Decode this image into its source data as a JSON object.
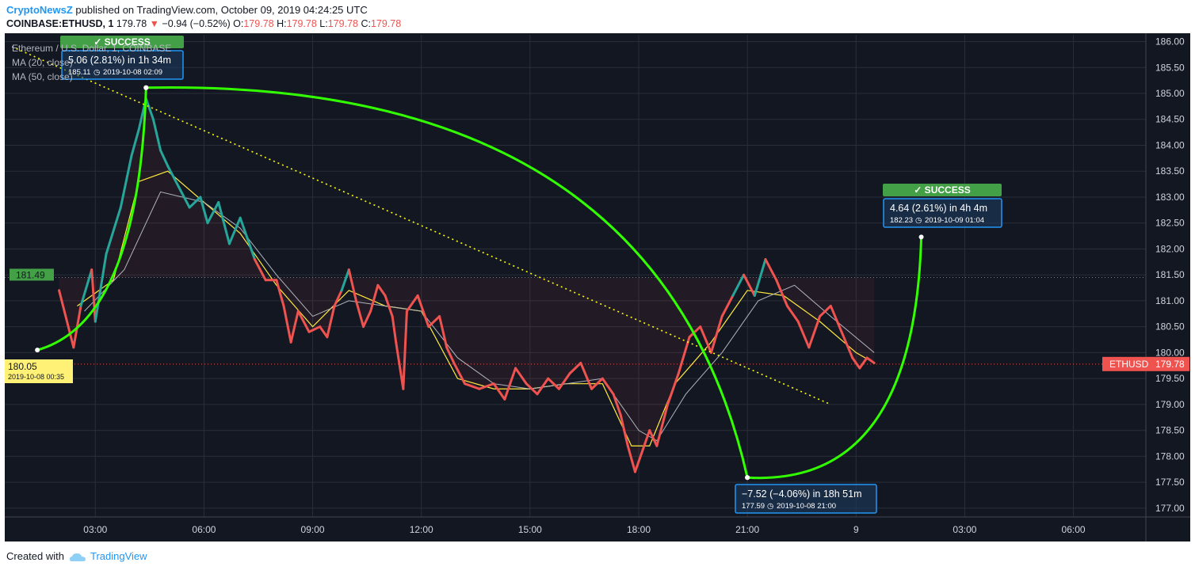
{
  "header": {
    "publisher": "CryptoNewsZ",
    "published_text": "published on TradingView.com, October 09, 2019 04:24:25 UTC",
    "symbol": "COINBASE:ETHUSD, 1",
    "last": "179.78",
    "change": "−0.94 (−0.52%)",
    "open_label": "O:",
    "open": "179.78",
    "high_label": "H:",
    "high": "179.78",
    "low_label": "L:",
    "low": "179.78",
    "close_label": "C:",
    "close": "179.78"
  },
  "legend": {
    "title": "Ethereum / U.S. Dollar, 1, COINBASE",
    "ma20": "MA (20, close)",
    "ma50": "MA (50, close)"
  },
  "footer": {
    "created_with": "Created with",
    "brand": "TradingView"
  },
  "colors": {
    "background": "#131722",
    "grid": "#2a2e39",
    "price_up": "#26a69a",
    "price_down": "#ef5350",
    "ma20": "#ffeb3b",
    "ma50": "#b2b5be",
    "projection_arc": "#32ff00",
    "trend_line": "#ffff00",
    "success": "#43a047",
    "callout_border": "#2196f3",
    "start_label": "#fff176"
  },
  "chart_data": {
    "type": "line",
    "title": "Ethereum / U.S. Dollar, 1, COINBASE",
    "series": [
      {
        "name": "ETHUSD",
        "values": [
          [
            -1.0,
            181.2
          ],
          [
            -0.6,
            180.1
          ],
          [
            -0.4,
            180.9
          ],
          [
            -0.1,
            181.6
          ],
          [
            0.0,
            180.6
          ],
          [
            0.3,
            181.9
          ],
          [
            0.7,
            182.8
          ],
          [
            1.0,
            183.8
          ],
          [
            1.2,
            184.3
          ],
          [
            1.4,
            184.9
          ],
          [
            1.6,
            184.5
          ],
          [
            1.8,
            183.9
          ],
          [
            2.0,
            183.6
          ],
          [
            2.3,
            183.2
          ],
          [
            2.6,
            182.8
          ],
          [
            2.9,
            183.0
          ],
          [
            3.1,
            182.5
          ],
          [
            3.4,
            182.9
          ],
          [
            3.7,
            182.1
          ],
          [
            4.0,
            182.6
          ],
          [
            4.2,
            182.2
          ],
          [
            4.4,
            181.8
          ],
          [
            4.7,
            181.4
          ],
          [
            5.0,
            181.4
          ],
          [
            5.2,
            180.9
          ],
          [
            5.4,
            180.2
          ],
          [
            5.6,
            180.8
          ],
          [
            5.9,
            180.4
          ],
          [
            6.2,
            180.5
          ],
          [
            6.4,
            180.3
          ],
          [
            6.6,
            180.9
          ],
          [
            6.8,
            181.2
          ],
          [
            7.0,
            181.6
          ],
          [
            7.2,
            181.0
          ],
          [
            7.4,
            180.5
          ],
          [
            7.6,
            180.8
          ],
          [
            7.8,
            181.3
          ],
          [
            8.0,
            181.1
          ],
          [
            8.2,
            180.7
          ],
          [
            8.3,
            180.2
          ],
          [
            8.5,
            179.3
          ],
          [
            8.6,
            180.8
          ],
          [
            8.9,
            181.1
          ],
          [
            9.2,
            180.5
          ],
          [
            9.5,
            180.7
          ],
          [
            9.7,
            180.1
          ],
          [
            9.9,
            179.8
          ],
          [
            10.2,
            179.4
          ],
          [
            10.6,
            179.3
          ],
          [
            11.0,
            179.4
          ],
          [
            11.3,
            179.1
          ],
          [
            11.6,
            179.7
          ],
          [
            11.9,
            179.4
          ],
          [
            12.2,
            179.2
          ],
          [
            12.5,
            179.5
          ],
          [
            12.8,
            179.3
          ],
          [
            13.1,
            179.6
          ],
          [
            13.4,
            179.8
          ],
          [
            13.7,
            179.3
          ],
          [
            14.0,
            179.5
          ],
          [
            14.3,
            179.2
          ],
          [
            14.5,
            178.8
          ],
          [
            14.7,
            178.2
          ],
          [
            14.9,
            177.7
          ],
          [
            15.1,
            178.1
          ],
          [
            15.3,
            178.5
          ],
          [
            15.5,
            178.2
          ],
          [
            15.8,
            179.0
          ],
          [
            16.1,
            179.6
          ],
          [
            16.4,
            180.3
          ],
          [
            16.7,
            180.5
          ],
          [
            17.0,
            180.0
          ],
          [
            17.3,
            180.7
          ],
          [
            17.6,
            181.1
          ],
          [
            17.9,
            181.5
          ],
          [
            18.2,
            181.1
          ],
          [
            18.5,
            181.8
          ],
          [
            18.8,
            181.4
          ],
          [
            19.1,
            180.9
          ],
          [
            19.4,
            180.6
          ],
          [
            19.7,
            180.1
          ],
          [
            20.0,
            180.7
          ],
          [
            20.3,
            180.9
          ],
          [
            20.6,
            180.4
          ],
          [
            20.9,
            179.9
          ],
          [
            21.1,
            179.7
          ],
          [
            21.3,
            179.9
          ],
          [
            21.5,
            179.8
          ]
        ]
      },
      {
        "name": "MA (20, close)",
        "values": [
          [
            -0.5,
            180.9
          ],
          [
            0.5,
            181.4
          ],
          [
            1.2,
            183.3
          ],
          [
            2.0,
            183.5
          ],
          [
            3.0,
            182.9
          ],
          [
            4.0,
            182.3
          ],
          [
            5.0,
            181.3
          ],
          [
            6.0,
            180.5
          ],
          [
            7.0,
            181.2
          ],
          [
            8.0,
            180.9
          ],
          [
            9.0,
            180.8
          ],
          [
            10.0,
            179.5
          ],
          [
            11.0,
            179.3
          ],
          [
            12.0,
            179.3
          ],
          [
            13.0,
            179.4
          ],
          [
            14.0,
            179.4
          ],
          [
            14.8,
            178.2
          ],
          [
            15.3,
            178.2
          ],
          [
            16.0,
            179.4
          ],
          [
            17.0,
            180.2
          ],
          [
            18.0,
            181.2
          ],
          [
            19.0,
            181.1
          ],
          [
            20.0,
            180.6
          ],
          [
            21.0,
            180.0
          ],
          [
            21.5,
            179.8
          ]
        ]
      },
      {
        "name": "MA (50, close)",
        "values": [
          [
            -0.3,
            180.8
          ],
          [
            0.8,
            181.6
          ],
          [
            1.8,
            183.1
          ],
          [
            3.0,
            182.9
          ],
          [
            4.0,
            182.4
          ],
          [
            5.0,
            181.5
          ],
          [
            6.0,
            180.7
          ],
          [
            7.0,
            181.0
          ],
          [
            8.0,
            180.9
          ],
          [
            9.0,
            180.8
          ],
          [
            10.0,
            179.9
          ],
          [
            11.0,
            179.4
          ],
          [
            12.0,
            179.3
          ],
          [
            13.0,
            179.4
          ],
          [
            14.0,
            179.5
          ],
          [
            15.0,
            178.5
          ],
          [
            15.5,
            178.3
          ],
          [
            16.3,
            179.2
          ],
          [
            17.3,
            180.0
          ],
          [
            18.3,
            181.0
          ],
          [
            19.3,
            181.3
          ],
          [
            20.3,
            180.7
          ],
          [
            21.5,
            180.0
          ]
        ]
      }
    ],
    "xlabel": "",
    "ylabel": "",
    "x_ticks": [
      "03:00",
      "06:00",
      "09:00",
      "12:00",
      "15:00",
      "18:00",
      "21:00",
      "9",
      "03:00",
      "06:00"
    ],
    "x_tick_values": [
      0,
      3,
      6,
      9,
      12,
      15,
      18,
      21,
      24,
      27
    ],
    "xlim": [
      -2.5,
      29.0
    ],
    "y_ticks": [
      "186.00",
      "185.50",
      "185.00",
      "184.50",
      "184.00",
      "183.50",
      "183.00",
      "182.50",
      "182.00",
      "181.50",
      "181.00",
      "180.50",
      "180.00",
      "179.50",
      "179.00",
      "178.50",
      "178.00",
      "177.50",
      "177.00"
    ],
    "ylim": [
      176.83,
      186.13
    ],
    "grid": true,
    "horizontal_lines": [
      181.45,
      179.78
    ],
    "last_price_label": "ETHUSD",
    "last_price": "179.78",
    "left_level_label": "181.49",
    "trend_line": [
      [
        -2.3,
        185.9
      ],
      [
        20.3,
        179.0
      ]
    ],
    "projection_arcs": [
      {
        "from": [
          -1.6,
          180.05
        ],
        "to": [
          1.4,
          185.11
        ]
      },
      {
        "from": [
          1.4,
          185.11
        ],
        "to": [
          18.0,
          177.59
        ]
      },
      {
        "from": [
          18.0,
          177.59
        ],
        "to": [
          22.8,
          182.23
        ]
      }
    ],
    "annotations": [
      {
        "status": "✓ SUCCESS",
        "text": "5.06 (2.81%) in 1h 34m",
        "price": "185.11",
        "date": "2019-10-08  02:09"
      },
      {
        "status": "",
        "text": "−7.52 (−4.06%) in 18h 51m",
        "price": "177.59",
        "date": "2019-10-08  21:00"
      },
      {
        "status": "✓ SUCCESS",
        "text": "4.64 (2.61%) in 4h 4m",
        "price": "182.23",
        "date": "2019-10-09  01:04"
      },
      {
        "status": "",
        "text": "180.05",
        "price": "",
        "date": "2019-10-08 00:35"
      }
    ]
  }
}
